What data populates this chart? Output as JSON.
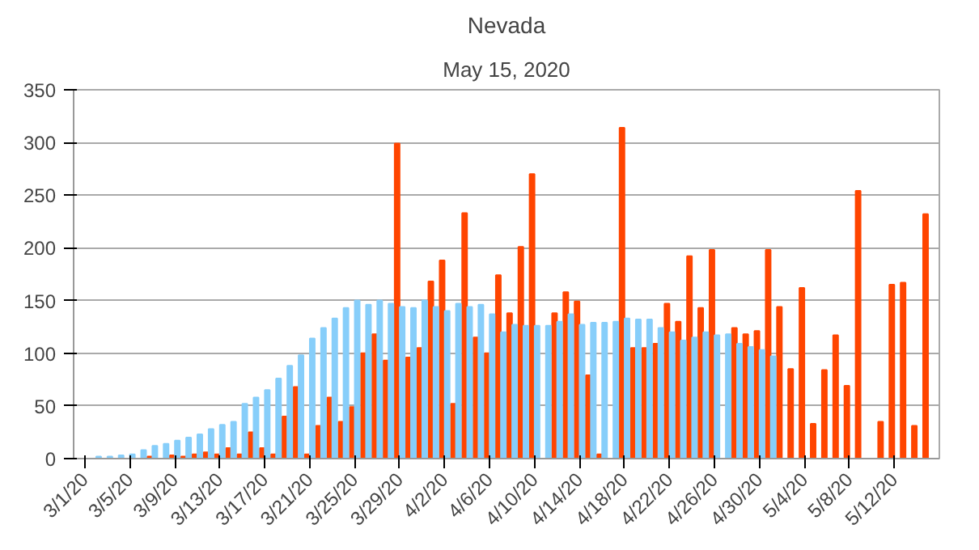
{
  "chart_data": {
    "type": "bar",
    "title": "Nevada",
    "subtitle": "May 15, 2020",
    "categories": [
      "3/1/20",
      null,
      null,
      null,
      "3/5/20",
      null,
      null,
      null,
      "3/9/20",
      null,
      null,
      null,
      "3/13/20",
      null,
      null,
      null,
      "3/17/20",
      null,
      null,
      null,
      "3/21/20",
      null,
      null,
      null,
      "3/25/20",
      null,
      null,
      null,
      "3/29/20",
      null,
      null,
      null,
      "4/2/20",
      null,
      null,
      null,
      "4/6/20",
      null,
      null,
      null,
      "4/10/20",
      null,
      null,
      null,
      "4/14/20",
      null,
      null,
      null,
      "4/18/20",
      null,
      null,
      null,
      "4/22/20",
      null,
      null,
      null,
      "4/26/20",
      null,
      null,
      null,
      "4/30/20",
      null,
      null,
      null,
      "5/4/20",
      null,
      null,
      null,
      "5/8/20",
      null,
      null,
      null,
      "5/12/20",
      null,
      null,
      null
    ],
    "series": [
      {
        "color": "#ff4500",
        "values": [
          0,
          0,
          null,
          0,
          null,
          null,
          2,
          null,
          3,
          2,
          4,
          6,
          4,
          10,
          4,
          25,
          10,
          4,
          40,
          68,
          4,
          31,
          58,
          35,
          49,
          100,
          118,
          93,
          299,
          96,
          105,
          168,
          188,
          52,
          233,
          115,
          100,
          174,
          138,
          201,
          270,
          null,
          138,
          158,
          149,
          79,
          4,
          null,
          314,
          105,
          105,
          109,
          147,
          130,
          192,
          143,
          198,
          null,
          124,
          118,
          121,
          198,
          144,
          85,
          162,
          33,
          84,
          117,
          69,
          254,
          null,
          35,
          165,
          167,
          31,
          232
        ]
      },
      {
        "color": "#87cefa",
        "values": [
          null,
          2,
          2,
          3,
          4,
          8,
          12,
          14,
          17,
          20,
          23,
          28,
          32,
          35,
          52,
          58,
          65,
          76,
          88,
          98,
          114,
          124,
          133,
          143,
          150,
          146,
          150,
          147,
          144,
          143,
          150,
          144,
          140,
          147,
          144,
          146,
          137,
          120,
          127,
          126,
          126,
          126,
          130,
          137,
          127,
          129,
          129,
          130,
          133,
          132,
          132,
          124,
          120,
          112,
          115,
          120,
          117,
          118,
          109,
          106,
          103,
          97,
          null,
          null,
          null,
          null,
          null,
          null,
          null,
          null,
          null,
          null,
          null,
          null,
          null,
          null
        ]
      }
    ],
    "ylim": [
      0,
      350
    ],
    "yticks": [
      0,
      50,
      100,
      150,
      200,
      250,
      300,
      350
    ],
    "grid": "y"
  }
}
